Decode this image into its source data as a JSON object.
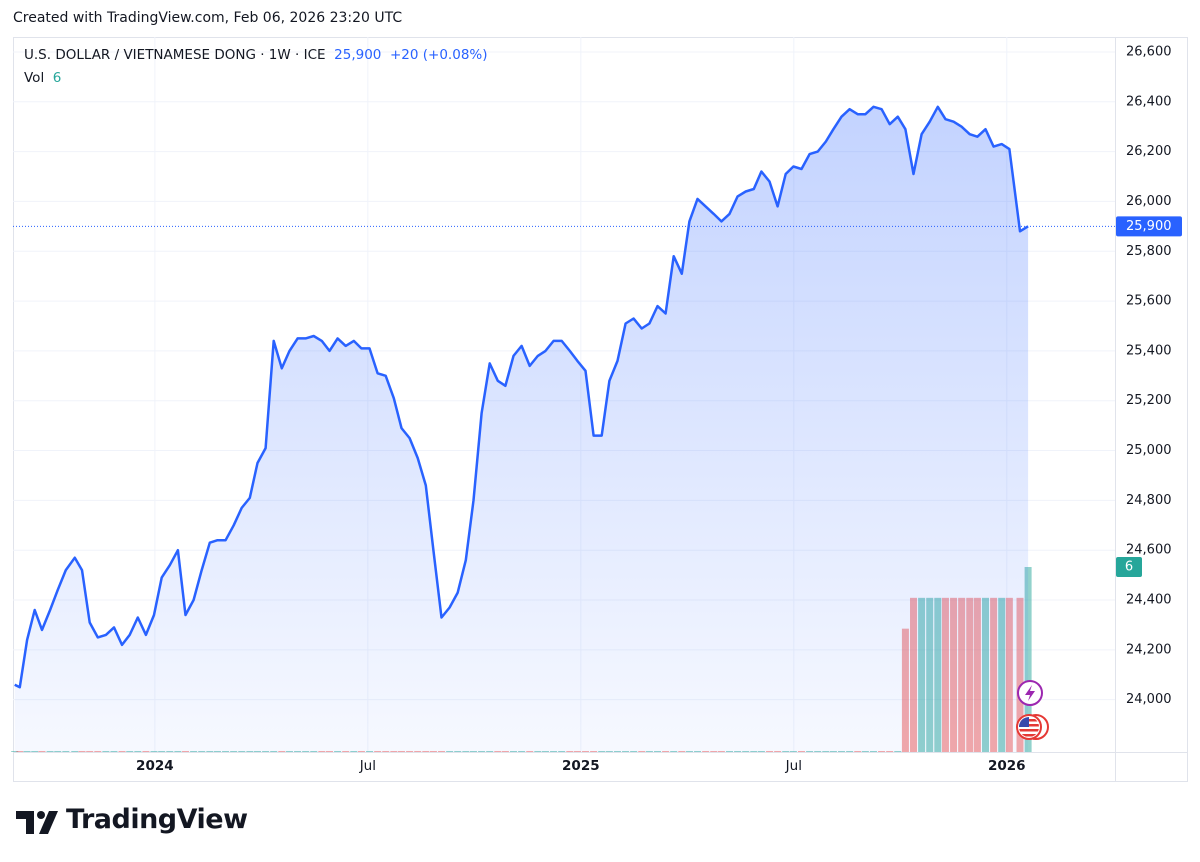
{
  "caption": "Created with TradingView.com, Feb 06, 2026 23:20 UTC",
  "logo": "TradingView",
  "chart_data": {
    "type": "area",
    "title": "U.S. DOLLAR / VIETNAMESE DONG · 1W · ICE",
    "last": "25,900",
    "change": "+20 (+0.08%)",
    "color": "#2962ff",
    "x": [
      2023.671,
      2023.683,
      2023.7,
      2023.718,
      2023.735,
      2023.754,
      2023.772,
      2023.791,
      2023.812,
      2023.829,
      2023.847,
      2023.866,
      2023.885,
      2023.904,
      2023.923,
      2023.941,
      2023.96,
      2023.979,
      2023.998,
      2024.016,
      2024.035,
      2024.054,
      2024.072,
      2024.091,
      2024.11,
      2024.129,
      2024.147,
      2024.166,
      2024.185,
      2024.204,
      2024.223,
      2024.241,
      2024.26,
      2024.279,
      2024.298,
      2024.316,
      2024.335,
      2024.354,
      2024.373,
      2024.392,
      2024.41,
      2024.429,
      2024.448,
      2024.467,
      2024.485,
      2024.504,
      2024.523,
      2024.542,
      2024.561,
      2024.579,
      2024.598,
      2024.617,
      2024.636,
      2024.654,
      2024.673,
      2024.692,
      2024.711,
      2024.73,
      2024.748,
      2024.767,
      2024.786,
      2024.805,
      2024.823,
      2024.842,
      2024.861,
      2024.88,
      2024.899,
      2024.917,
      2024.936,
      2024.955,
      2024.974,
      2024.992,
      2025.011,
      2025.03,
      2025.049,
      2025.067,
      2025.086,
      2025.105,
      2025.124,
      2025.143,
      2025.161,
      2025.18,
      2025.199,
      2025.218,
      2025.237,
      2025.255,
      2025.274,
      2025.293,
      2025.312,
      2025.33,
      2025.349,
      2025.368,
      2025.387,
      2025.406,
      2025.424,
      2025.443,
      2025.462,
      2025.481,
      2025.499,
      2025.518,
      2025.537,
      2025.556,
      2025.575,
      2025.593,
      2025.612,
      2025.631,
      2025.65,
      2025.668,
      2025.687,
      2025.706,
      2025.725,
      2025.744,
      2025.762,
      2025.781,
      2025.8,
      2025.819,
      2025.838,
      2025.856,
      2025.875,
      2025.894,
      2025.913,
      2025.931,
      2025.95,
      2025.969,
      2025.988,
      2026.006,
      2026.031,
      2026.05
    ],
    "values": [
      24060,
      24050,
      24240,
      24360,
      24280,
      24360,
      24440,
      24520,
      24570,
      24520,
      24310,
      24250,
      24260,
      24290,
      24220,
      24260,
      24330,
      24260,
      24340,
      24490,
      24540,
      24600,
      24340,
      24400,
      24520,
      24630,
      24640,
      24640,
      24700,
      24770,
      24810,
      24950,
      25010,
      25440,
      25330,
      25400,
      25450,
      25450,
      25460,
      25440,
      25400,
      25450,
      25420,
      25440,
      25410,
      25410,
      25310,
      25300,
      25210,
      25090,
      25050,
      24970,
      24860,
      24600,
      24330,
      24370,
      24430,
      24560,
      24800,
      25150,
      25350,
      25280,
      25260,
      25380,
      25420,
      25340,
      25380,
      25400,
      25440,
      25440,
      25400,
      25360,
      25320,
      25060,
      25060,
      25280,
      25360,
      25510,
      25530,
      25490,
      25510,
      25580,
      25550,
      25780,
      25710,
      25920,
      26010,
      25980,
      25950,
      25920,
      25950,
      26020,
      26040,
      26050,
      26120,
      26080,
      25980,
      26110,
      26140,
      26130,
      26190,
      26200,
      26240,
      26290,
      26340,
      26370,
      26350,
      26350,
      26380,
      26370,
      26310,
      26340,
      26290,
      26110,
      26270,
      26320,
      26380,
      26330,
      26320,
      26300,
      26270,
      26260,
      26290,
      26220,
      26230,
      26210,
      25880,
      25900
    ],
    "volume": {
      "name": "Vol",
      "up_color": "#26a69a",
      "down_color": "#ef5350",
      "values": [
        0,
        0,
        0,
        0,
        0,
        0,
        0,
        0,
        0,
        0,
        0,
        0,
        0,
        0,
        0,
        0,
        0,
        0,
        0,
        0,
        0,
        0,
        0,
        0,
        0,
        0,
        0,
        0,
        0,
        0,
        0,
        0,
        0,
        0,
        0,
        0,
        0,
        0,
        0,
        0,
        0,
        0,
        0,
        0,
        0,
        0,
        0,
        0,
        0,
        0,
        0,
        0,
        0,
        0,
        0,
        0,
        0,
        0,
        0,
        0,
        0,
        0,
        0,
        0,
        0,
        0,
        0,
        0,
        0,
        0,
        0,
        0,
        0,
        0,
        0,
        0,
        0,
        0,
        0,
        0,
        0,
        0,
        0,
        0,
        0,
        0,
        0,
        0,
        0,
        0,
        0,
        0,
        0,
        0,
        0,
        0,
        0,
        0,
        0,
        0,
        0,
        0,
        0,
        0,
        0,
        0,
        0,
        0,
        0,
        0,
        0,
        0,
        4,
        5,
        5,
        5,
        5,
        5,
        5,
        5,
        5,
        5,
        5,
        5,
        5,
        5,
        5,
        6
      ]
    },
    "xlim": [
      2023.667,
      2026.254
    ],
    "xticks": [
      2024,
      {
        "value": 2024.5,
        "label": "Jul"
      },
      2025,
      {
        "value": 2025.5,
        "label": "Jul"
      },
      2026
    ],
    "ylim": [
      23790,
      26660
    ],
    "yticks": [
      {
        "value": 24000,
        "label": "24,000"
      },
      {
        "value": 24200,
        "label": "24,200"
      },
      {
        "value": 24400,
        "label": "24,400"
      },
      {
        "value": 24600,
        "label": "24,600"
      },
      {
        "value": 24800,
        "label": "24,800"
      },
      {
        "value": 25000,
        "label": "25,000"
      },
      {
        "value": 25200,
        "label": "25,200"
      },
      {
        "value": 25400,
        "label": "25,400"
      },
      {
        "value": 25600,
        "label": "25,600"
      },
      {
        "value": 25800,
        "label": "25,800"
      },
      {
        "value": 26000,
        "label": "26,000"
      },
      {
        "value": 26200,
        "label": "26,200"
      },
      {
        "value": 26400,
        "label": "26,400"
      },
      {
        "value": 26600,
        "label": "26,600"
      }
    ],
    "grid": true
  }
}
